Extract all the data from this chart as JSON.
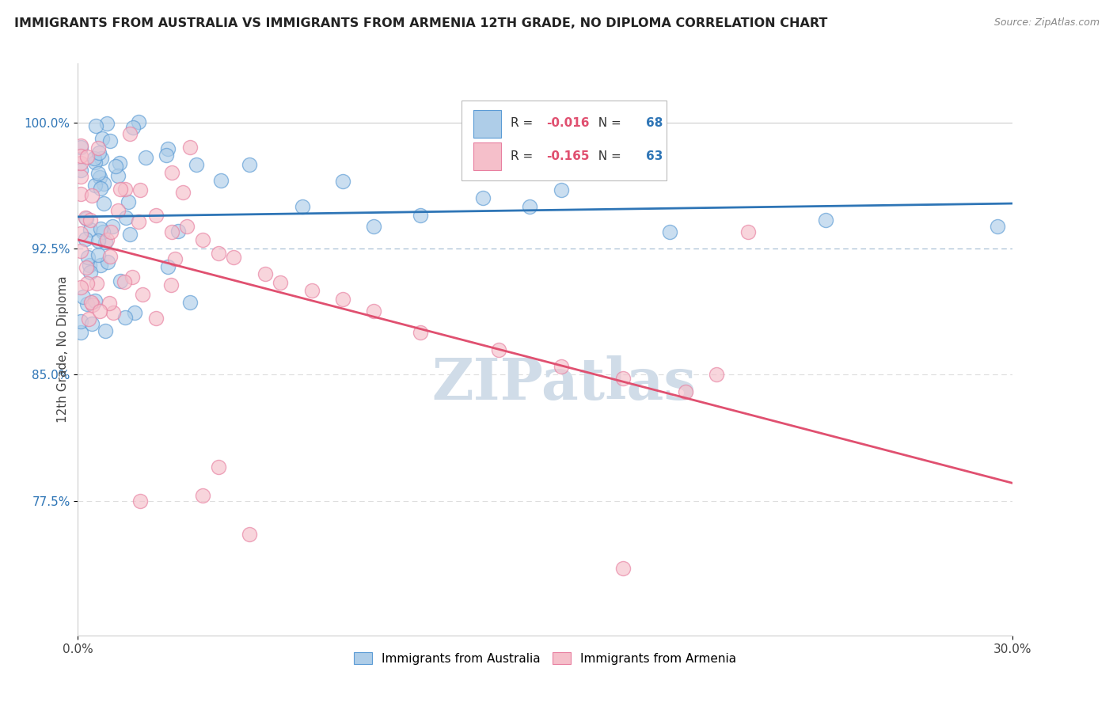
{
  "title": "IMMIGRANTS FROM AUSTRALIA VS IMMIGRANTS FROM ARMENIA 12TH GRADE, NO DIPLOMA CORRELATION CHART",
  "source": "Source: ZipAtlas.com",
  "ylabel": "12th Grade, No Diploma",
  "yaxis_labels": [
    "100.0%",
    "92.5%",
    "85.0%",
    "77.5%"
  ],
  "yaxis_values": [
    1.0,
    0.925,
    0.85,
    0.775
  ],
  "xlim": [
    0.0,
    0.3
  ],
  "ylim": [
    0.695,
    1.035
  ],
  "legend_blue_r": "-0.016",
  "legend_blue_n": "68",
  "legend_pink_r": "-0.165",
  "legend_pink_n": "63",
  "blue_color": "#aecde8",
  "pink_color": "#f5bfca",
  "blue_edge_color": "#5b9bd5",
  "pink_edge_color": "#e87fa0",
  "blue_line_color": "#2e75b6",
  "pink_line_color": "#e05070",
  "watermark_color": "#d0dce8",
  "grid_solid_color": "#cccccc",
  "grid_dash_color": "#dddddd",
  "background": "#ffffff"
}
